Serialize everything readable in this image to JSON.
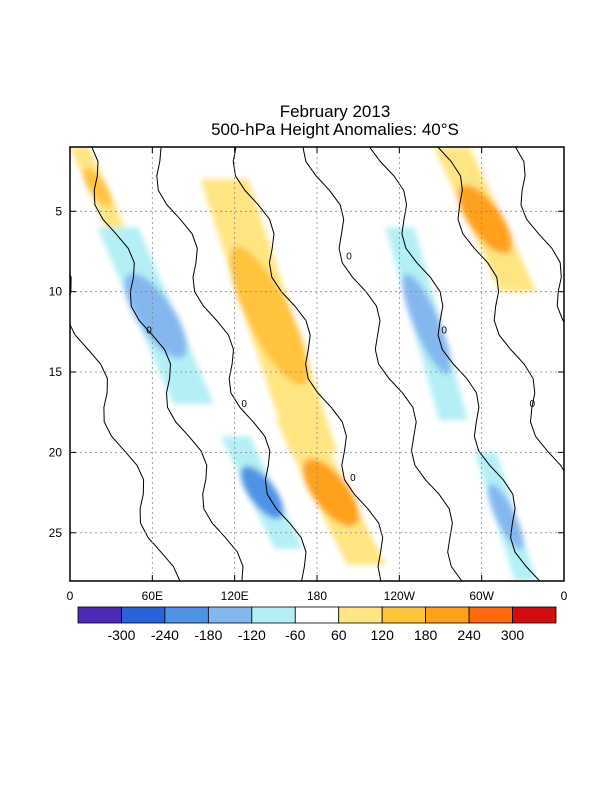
{
  "chart_data": {
    "type": "heatmap",
    "title": "February 2013",
    "subtitle": "500-hPa Height Anomalies: 40°S",
    "xlabel": "",
    "ylabel": "",
    "x_ticks": [
      "0",
      "60E",
      "120E",
      "180",
      "120W",
      "60W",
      "0"
    ],
    "y_ticks": [
      5,
      10,
      15,
      20,
      25
    ],
    "xlim": [
      0,
      360
    ],
    "ylim": [
      1,
      28
    ],
    "grid": true,
    "contour_label": "0",
    "colorbar": {
      "labels": [
        "-300",
        "-240",
        "-180",
        "-120",
        "-60",
        "60",
        "120",
        "180",
        "240",
        "300"
      ],
      "colors": [
        "#4d2ab8",
        "#2a63d9",
        "#4f93e6",
        "#85b7ef",
        "#b3eff5",
        "#ffffff",
        "#ffe581",
        "#ffc33c",
        "#ffa01a",
        "#ff6a0e",
        "#d10d0d"
      ]
    },
    "features": [
      {
        "name": "positive band",
        "lon": [
          0,
          40
        ],
        "day_start": [
          1,
          6
        ],
        "value": 160
      },
      {
        "name": "positive band",
        "lon": [
          95,
          195
        ],
        "day_start": [
          3,
          20
        ],
        "value": 130
      },
      {
        "name": "positive band",
        "lon": [
          150,
          230
        ],
        "day_start": [
          18,
          27
        ],
        "value": 180
      },
      {
        "name": "positive band",
        "lon": [
          265,
          340
        ],
        "day_start": [
          1,
          10
        ],
        "value": 180
      },
      {
        "name": "negative band",
        "lon": [
          20,
          105
        ],
        "day_start": [
          6,
          17
        ],
        "value": -150
      },
      {
        "name": "negative band",
        "lon": [
          110,
          170
        ],
        "day_start": [
          19,
          26
        ],
        "value": -200
      },
      {
        "name": "negative band",
        "lon": [
          230,
          290
        ],
        "day_start": [
          6,
          18
        ],
        "value": -140
      },
      {
        "name": "negative band",
        "lon": [
          295,
          340
        ],
        "day_start": [
          20,
          28
        ],
        "value": -180
      }
    ]
  }
}
